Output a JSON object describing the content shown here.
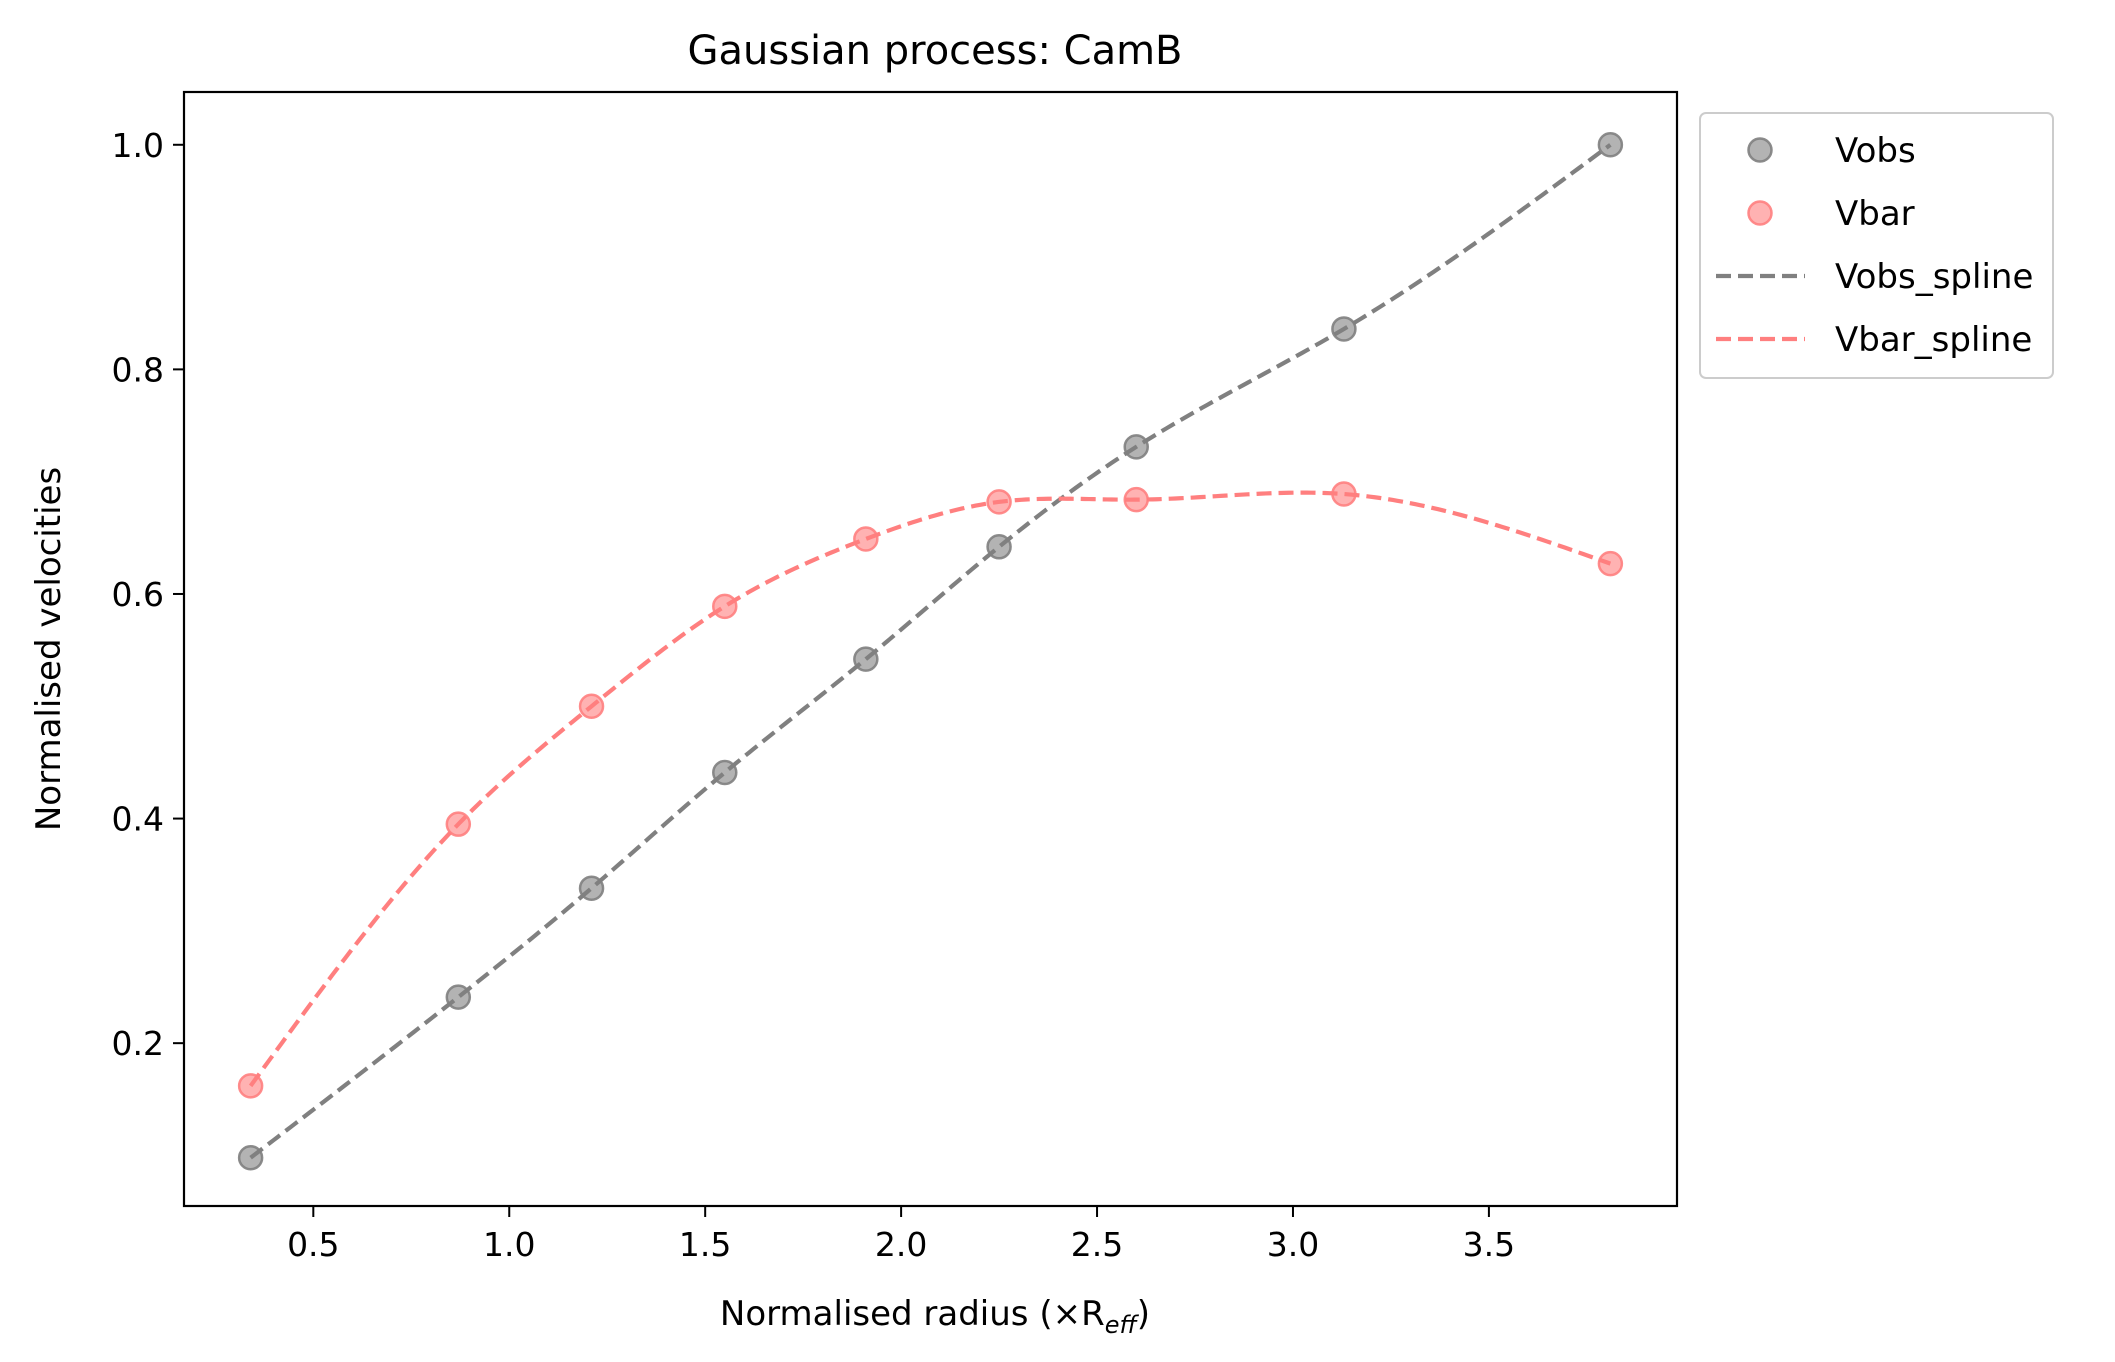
{
  "chart_data": {
    "type": "scatter",
    "title": "Gaussian process: CamB",
    "xlabel": "Normalised radius (×R",
    "xlabel_sub": "eff",
    "xlabel_close": ")",
    "ylabel": "Normalised velocities",
    "xlim": [
      0.17,
      3.98
    ],
    "ylim": [
      0.055,
      1.047
    ],
    "xticks": [
      0.5,
      1.0,
      1.5,
      2.0,
      2.5,
      3.0,
      3.5
    ],
    "xtick_labels": [
      "0.5",
      "1.0",
      "1.5",
      "2.0",
      "2.5",
      "3.0",
      "3.5"
    ],
    "yticks": [
      0.2,
      0.4,
      0.6,
      0.8,
      1.0
    ],
    "ytick_labels": [
      "0.2",
      "0.4",
      "0.6",
      "0.8",
      "1.0"
    ],
    "grid": false,
    "legend_position": "outside-top-right",
    "x": [
      0.34,
      0.87,
      1.21,
      1.55,
      1.91,
      2.25,
      2.6,
      3.13,
      3.81
    ],
    "series": [
      {
        "name": "Vobs",
        "kind": "scatter",
        "color": "#808080",
        "values": [
          0.098,
          0.241,
          0.338,
          0.441,
          0.542,
          0.642,
          0.731,
          0.836,
          1.0
        ]
      },
      {
        "name": "Vbar",
        "kind": "scatter",
        "color": "#ff7f7f",
        "values": [
          0.162,
          0.395,
          0.5,
          0.589,
          0.649,
          0.682,
          0.684,
          0.689,
          0.627
        ]
      },
      {
        "name": "Vobs_spline",
        "kind": "line",
        "style": "dashed",
        "color": "#808080",
        "source": "Vobs"
      },
      {
        "name": "Vbar_spline",
        "kind": "line",
        "style": "dashed",
        "color": "#ff7f7f",
        "source": "Vbar"
      }
    ]
  }
}
